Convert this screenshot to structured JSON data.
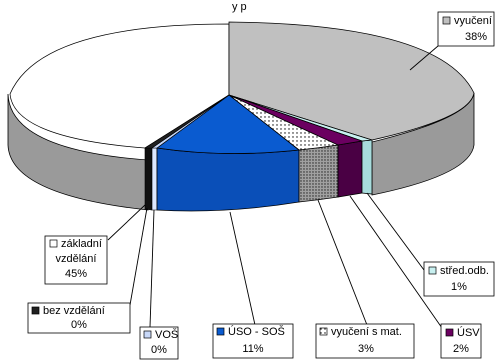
{
  "chart_data": {
    "type": "pie",
    "style": "3d-exploded",
    "title": "",
    "slices": [
      {
        "label": "vyučení",
        "value": 38,
        "display": "38%",
        "color": "#c0c0c0"
      },
      {
        "label": "střed.odb.",
        "value": 1,
        "display": "1%",
        "color": "#c8f0f0"
      },
      {
        "label": "ÚSV",
        "value": 2,
        "display": "2%",
        "color": "#6b0060"
      },
      {
        "label": "vyučení s mat.",
        "value": 3,
        "display": "3%",
        "color": "#ffffff"
      },
      {
        "label": "ÚSO - SOŠ",
        "value": 11,
        "display": "11%",
        "color": "#0a5bd0"
      },
      {
        "label": "VOŠ",
        "value": 0,
        "display": "0%",
        "color": "#c8d8f8"
      },
      {
        "label": "bez vzdělání",
        "value": 0,
        "display": "0%",
        "color": "#202020"
      },
      {
        "label": "základní vzdělání",
        "value": 45,
        "display": "45%",
        "color": "#ffffff"
      }
    ],
    "legend": "labels-with-leader-lines"
  }
}
